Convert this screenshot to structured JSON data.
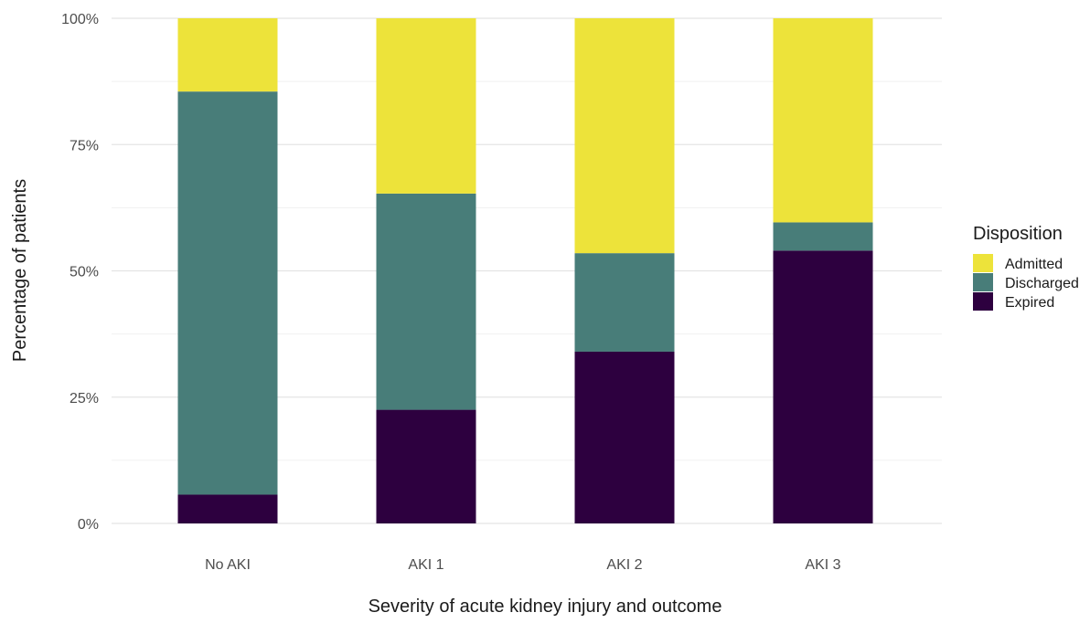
{
  "chart_data": {
    "type": "bar",
    "stacked": true,
    "categories": [
      "No AKI",
      "AKI 1",
      "AKI 2",
      "AKI 3"
    ],
    "series": [
      {
        "name": "Expired",
        "color": "#2d003f",
        "values": [
          5.7,
          22.5,
          34.0,
          54.0
        ]
      },
      {
        "name": "Discharged",
        "color": "#487d79",
        "values": [
          79.8,
          42.8,
          19.5,
          5.6
        ]
      },
      {
        "name": "Admitted",
        "color": "#ede33a",
        "values": [
          14.5,
          34.7,
          46.5,
          40.4
        ]
      }
    ],
    "legend_order": [
      "Admitted",
      "Discharged",
      "Expired"
    ],
    "xlabel": "Severity of acute kidney injury and outcome",
    "ylabel": "Percentage of patients",
    "ylim": [
      0,
      100
    ],
    "yticks": [
      0,
      25,
      50,
      75,
      100
    ],
    "ytick_labels": [
      "0%",
      "25%",
      "50%",
      "75%",
      "100%"
    ],
    "grid": true,
    "legend_title": "Disposition",
    "legend_position": "right"
  }
}
